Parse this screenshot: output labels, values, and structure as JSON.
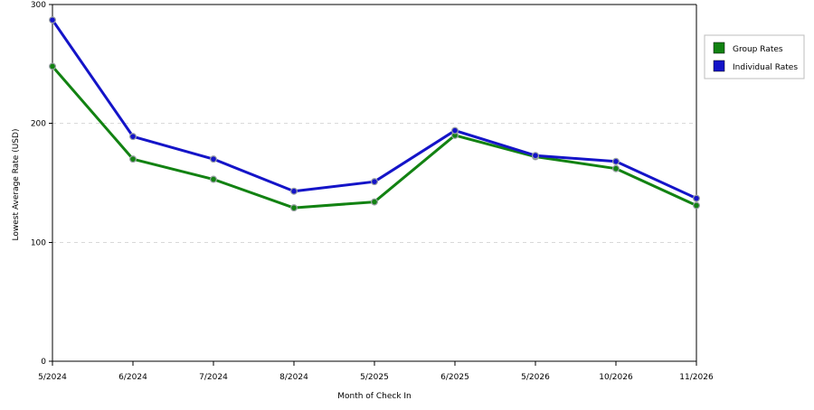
{
  "chart_data": {
    "type": "line",
    "categories": [
      "5/2024",
      "6/2024",
      "7/2024",
      "8/2024",
      "5/2025",
      "6/2025",
      "5/2026",
      "10/2026",
      "11/2026"
    ],
    "series": [
      {
        "name": "Group Rates",
        "color": "#128212",
        "values": [
          248,
          170,
          153,
          129,
          134,
          190,
          172,
          162,
          131
        ]
      },
      {
        "name": "Individual Rates",
        "color": "#1414c8",
        "values": [
          287,
          189,
          170,
          143,
          151,
          194,
          173,
          168,
          137
        ]
      }
    ],
    "xlabel": "Month of Check In",
    "ylabel": "Lowest Average Rate (USD)",
    "ylim": [
      0,
      300
    ],
    "yticks": [
      0,
      100,
      200,
      300
    ],
    "grid": true,
    "legend_position": "top-right"
  }
}
